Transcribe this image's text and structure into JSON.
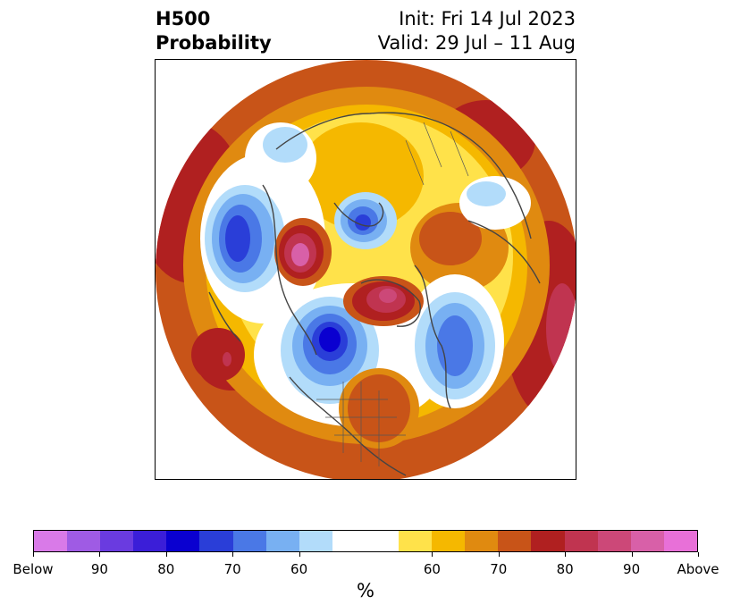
{
  "title": {
    "left_line1": "H500",
    "left_line2": "Probability",
    "right_line1": "Init: Fri 14 Jul 2023",
    "right_line2": "Valid: 29 Jul – 11 Aug"
  },
  "colorbar": {
    "colors": [
      "#d97ae8",
      "#9f5be4",
      "#6a3be0",
      "#3b1ed8",
      "#0a00d0",
      "#2a3ed8",
      "#4a78e6",
      "#78b0f2",
      "#b2dcfa",
      "#ffffff",
      "#ffe24a",
      "#f5b800",
      "#e08a10",
      "#c85418",
      "#b02020",
      "#c03450",
      "#cc4878",
      "#d860a8",
      "#e870d8"
    ],
    "tick_labels": [
      "Below",
      "90",
      "80",
      "70",
      "60",
      "60",
      "70",
      "80",
      "90",
      "Above"
    ],
    "unit": "%"
  }
}
